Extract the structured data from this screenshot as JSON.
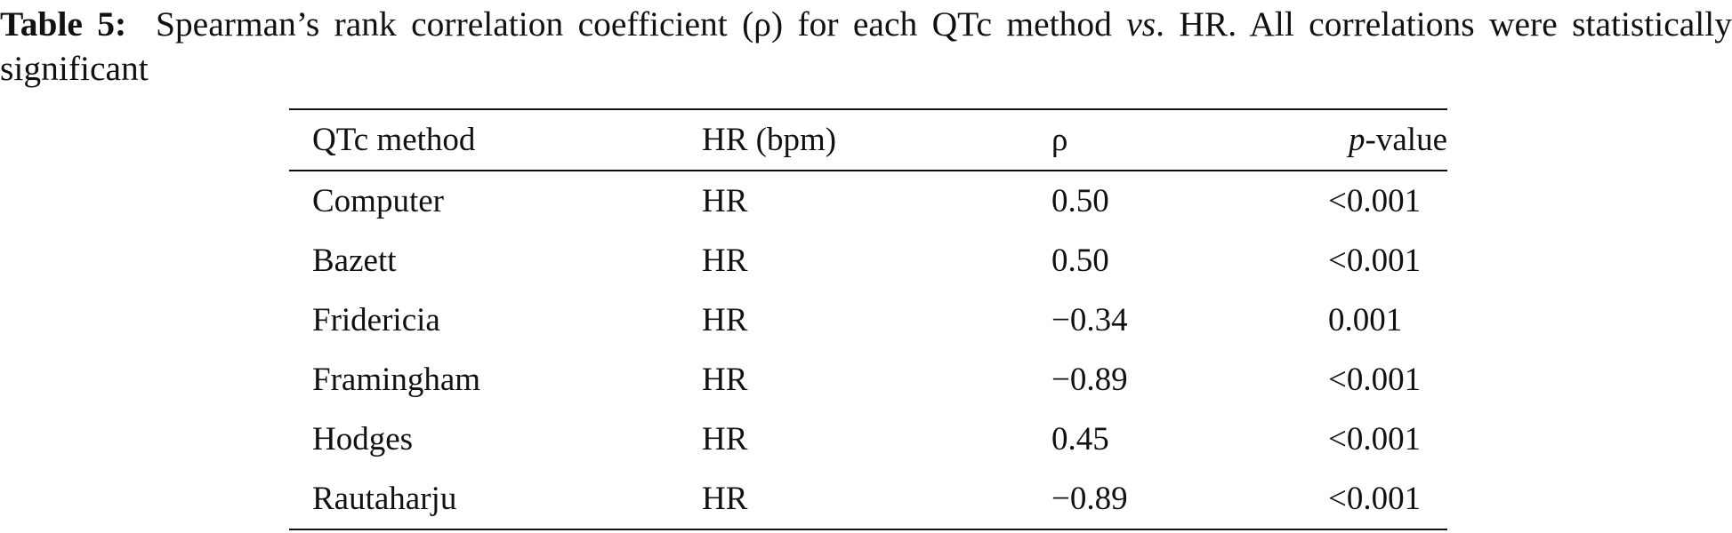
{
  "caption": {
    "label": "Table 5:",
    "text_before": "Spearman’s rank correlation coefficient (ρ) for each QTc method",
    "text_italic": "vs",
    "text_after": ". HR. All correlations were statistically significant"
  },
  "table": {
    "header": [
      [
        "QTc method"
      ],
      [
        "HR (bpm)"
      ],
      [
        "ρ"
      ],
      [
        "p",
        "-value"
      ]
    ],
    "rows": [
      [
        "Computer",
        "HR",
        "0.50",
        "<0.001"
      ],
      [
        "Bazett",
        "HR",
        "0.50",
        "<0.001"
      ],
      [
        "Fridericia",
        "HR",
        "−0.34",
        "0.001"
      ],
      [
        "Framingham",
        "HR",
        "−0.89",
        "<0.001"
      ],
      [
        "Hodges",
        "HR",
        "0.45",
        "<0.001"
      ],
      [
        "Rautaharju",
        "HR",
        "−0.89",
        "<0.001"
      ]
    ]
  }
}
